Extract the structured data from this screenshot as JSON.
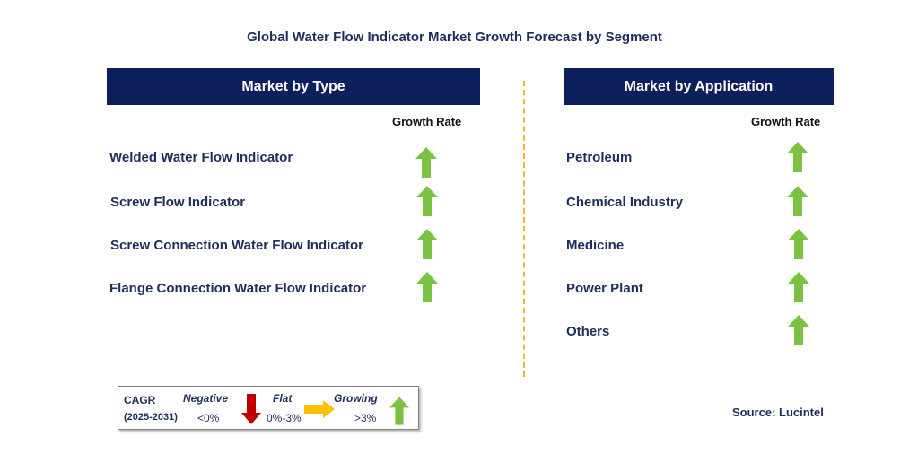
{
  "title": "Global Water Flow Indicator Market Growth Forecast by Segment",
  "left_panel": {
    "header": "Market by Type",
    "growth_rate_label": "Growth Rate",
    "rows": [
      {
        "label": "Welded Water Flow Indicator",
        "trend": "up-arrow-icon"
      },
      {
        "label": "Screw Flow Indicator",
        "trend": "up-arrow-icon"
      },
      {
        "label": "Screw Connection Water Flow Indicator",
        "trend": "up-arrow-icon"
      },
      {
        "label": "Flange Connection Water Flow Indicator",
        "trend": "up-arrow-icon"
      }
    ]
  },
  "right_panel": {
    "header": "Market by Application",
    "growth_rate_label": "Growth Rate",
    "rows": [
      {
        "label": "Petroleum",
        "trend": "up-arrow-icon"
      },
      {
        "label": "Chemical Industry",
        "trend": "up-arrow-icon"
      },
      {
        "label": "Medicine",
        "trend": "up-arrow-icon"
      },
      {
        "label": "Power Plant",
        "trend": "up-arrow-icon"
      },
      {
        "label": "Others",
        "trend": "up-arrow-icon"
      }
    ]
  },
  "legend": {
    "cagr_label": "CAGR",
    "period": "(2025-2031)",
    "negative_label": "Negative",
    "negative_range": "<0%",
    "flat_label": "Flat",
    "flat_range": "0%-3%",
    "growing_label": "Growing",
    "growing_range": ">3%"
  },
  "source": "Source: Lucintel",
  "colors": {
    "header_bg": "#0d1f5c",
    "text": "#1f2d5a",
    "growing": "#7cc242",
    "negative": "#c00000",
    "flat": "#ffc000",
    "divider": "#f2b233"
  }
}
